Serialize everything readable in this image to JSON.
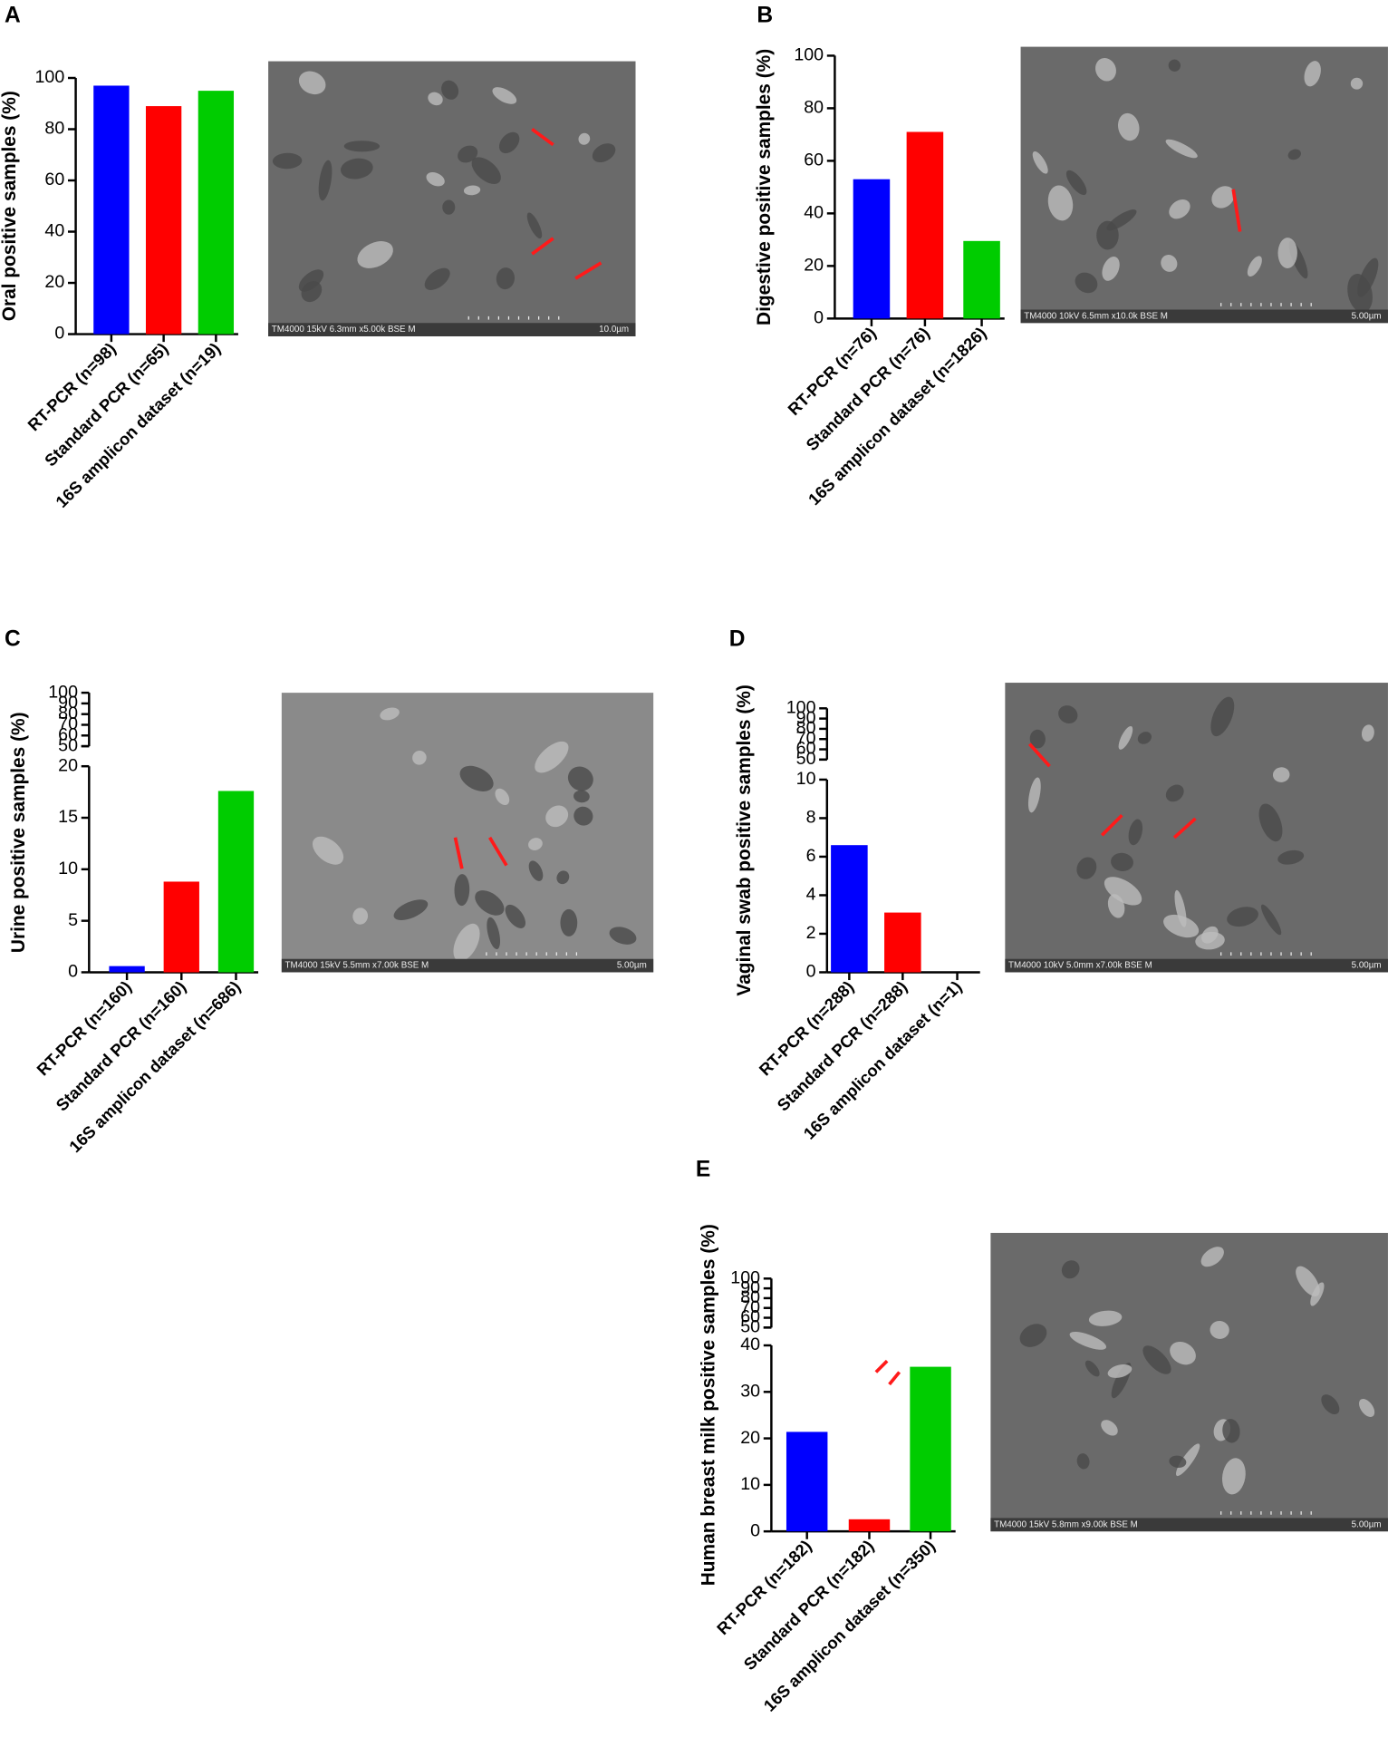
{
  "chart_data": [
    {
      "type": "bar",
      "panel": "A",
      "ylabel": "Oral positive samples (%)",
      "categories": [
        "RT-PCR (n=98)",
        "Standard PCR (n=65)",
        "16S amplicon dataset (n=19)"
      ],
      "values": [
        97,
        89,
        95
      ],
      "colors": [
        "#0000ff",
        "#ff0000",
        "#00cc00"
      ],
      "ylim": [
        0,
        100
      ],
      "yticks": [
        0,
        20,
        40,
        60,
        80,
        100
      ],
      "image_caption": "TM4000 15kV 6.3mm x5.00k BSE M",
      "scale_label": "10.0µm"
    },
    {
      "type": "bar",
      "panel": "B",
      "ylabel": "Digestive positive samples (%)",
      "categories": [
        "RT-PCR (n=76)",
        "Standard PCR (n=76)",
        "16S amplicon dataset (n=1826)"
      ],
      "values": [
        53,
        71,
        29.5
      ],
      "colors": [
        "#0000ff",
        "#ff0000",
        "#00cc00"
      ],
      "ylim": [
        0,
        100
      ],
      "yticks": [
        0,
        20,
        40,
        60,
        80,
        100
      ],
      "image_caption": "TM4000 10kV 6.5mm x10.0k BSE M",
      "scale_label": "5.00µm"
    },
    {
      "type": "bar",
      "panel": "C",
      "ylabel": "Urine positive samples (%)",
      "categories": [
        "RT-PCR (n=160)",
        "Standard PCR (n=160)",
        "16S amplicon dataset (n=686)"
      ],
      "values": [
        0.6,
        8.8,
        17.6
      ],
      "colors": [
        "#0000ff",
        "#ff0000",
        "#00cc00"
      ],
      "ylim": [
        0,
        20
      ],
      "yticks": [
        0,
        5,
        10,
        15,
        20
      ],
      "ylim_upper": [
        50,
        100
      ],
      "yticks_upper": [
        50,
        60,
        70,
        80,
        90,
        100
      ],
      "image_caption": "TM4000 15kV 5.5mm x7.00k BSE M",
      "scale_label": "5.00µm"
    },
    {
      "type": "bar",
      "panel": "D",
      "ylabel": "Vaginal swab positive samples (%)",
      "categories": [
        "RT-PCR (n=288)",
        "Standard PCR (n=288)",
        "16S amplicon dataset (n=1)"
      ],
      "values": [
        6.6,
        3.1,
        0
      ],
      "colors": [
        "#0000ff",
        "#ff0000",
        "#00cc00"
      ],
      "ylim": [
        0,
        10
      ],
      "yticks": [
        0,
        2,
        4,
        6,
        8,
        10
      ],
      "ylim_upper": [
        50,
        100
      ],
      "yticks_upper": [
        50,
        60,
        70,
        80,
        90,
        100
      ],
      "image_caption": "TM4000 10kV 5.0mm x7.00k BSE M",
      "scale_label": "5.00µm"
    },
    {
      "type": "bar",
      "panel": "E",
      "ylabel": "Human breast milk positive samples (%)",
      "categories": [
        "RT-PCR (n=182)",
        "Standard PCR (n=182)",
        "16S amplicon dataset (n=350)"
      ],
      "values": [
        21.4,
        2.6,
        35.4
      ],
      "colors": [
        "#0000ff",
        "#ff0000",
        "#00cc00"
      ],
      "ylim": [
        0,
        40
      ],
      "yticks": [
        0,
        10,
        20,
        30,
        40
      ],
      "ylim_upper": [
        50,
        100
      ],
      "yticks_upper": [
        50,
        60,
        70,
        80,
        90,
        100
      ],
      "image_caption": "TM4000 15kV 5.8mm x9.00k BSE M",
      "scale_label": "5.00µm"
    }
  ]
}
